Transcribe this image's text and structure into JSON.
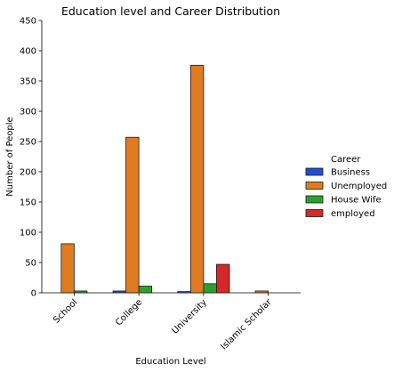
{
  "chart_data": {
    "type": "bar",
    "title": "Education level and Career Distribution",
    "xlabel": "Education Level",
    "ylabel": "Number of People",
    "ylim": [
      0,
      450
    ],
    "yticks": [
      0,
      50,
      100,
      150,
      200,
      250,
      300,
      350,
      400,
      450
    ],
    "categories": [
      "School",
      "College",
      "University",
      "Islamic Scholar"
    ],
    "legend_title": "Career",
    "legend_position": "right",
    "series": [
      {
        "name": "Business",
        "color": "#1f4fd1",
        "values": [
          0,
          3,
          2,
          0
        ]
      },
      {
        "name": "Unemployed",
        "color": "#e07b22",
        "values": [
          81,
          257,
          376,
          3
        ]
      },
      {
        "name": "House Wife",
        "color": "#2ca02c",
        "values": [
          3,
          11,
          15,
          0
        ]
      },
      {
        "name": "employed",
        "color": "#d62728",
        "values": [
          0,
          0,
          47,
          0
        ]
      }
    ]
  }
}
